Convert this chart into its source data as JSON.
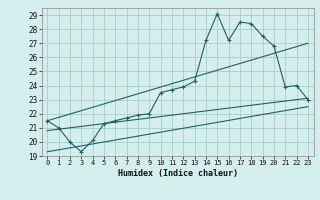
{
  "title": "",
  "xlabel": "Humidex (Indice chaleur)",
  "bg_color": "#d4eded",
  "grid_color": "#a8cccc",
  "line_color": "#206060",
  "xlim": [
    -0.5,
    23.5
  ],
  "ylim": [
    19,
    29.5
  ],
  "yticks": [
    19,
    20,
    21,
    22,
    23,
    24,
    25,
    26,
    27,
    28,
    29
  ],
  "xticks": [
    0,
    1,
    2,
    3,
    4,
    5,
    6,
    7,
    8,
    9,
    10,
    11,
    12,
    13,
    14,
    15,
    16,
    17,
    18,
    19,
    20,
    21,
    22,
    23
  ],
  "series1_x": [
    0,
    1,
    2,
    3,
    4,
    5,
    6,
    7,
    8,
    9,
    10,
    11,
    12,
    13,
    14,
    15,
    16,
    17,
    18,
    19,
    20,
    21,
    22,
    23
  ],
  "series1_y": [
    21.5,
    21.0,
    20.0,
    19.3,
    20.1,
    21.3,
    21.5,
    21.7,
    21.9,
    22.0,
    23.5,
    23.7,
    23.9,
    24.3,
    27.2,
    29.1,
    27.2,
    28.5,
    28.4,
    27.5,
    26.8,
    23.9,
    24.0,
    23.0
  ],
  "series2_x": [
    0,
    23
  ],
  "series2_y": [
    20.8,
    23.1
  ],
  "series3_x": [
    0,
    23
  ],
  "series3_y": [
    21.5,
    27.0
  ],
  "series4_x": [
    0,
    23
  ],
  "series4_y": [
    19.3,
    22.5
  ]
}
